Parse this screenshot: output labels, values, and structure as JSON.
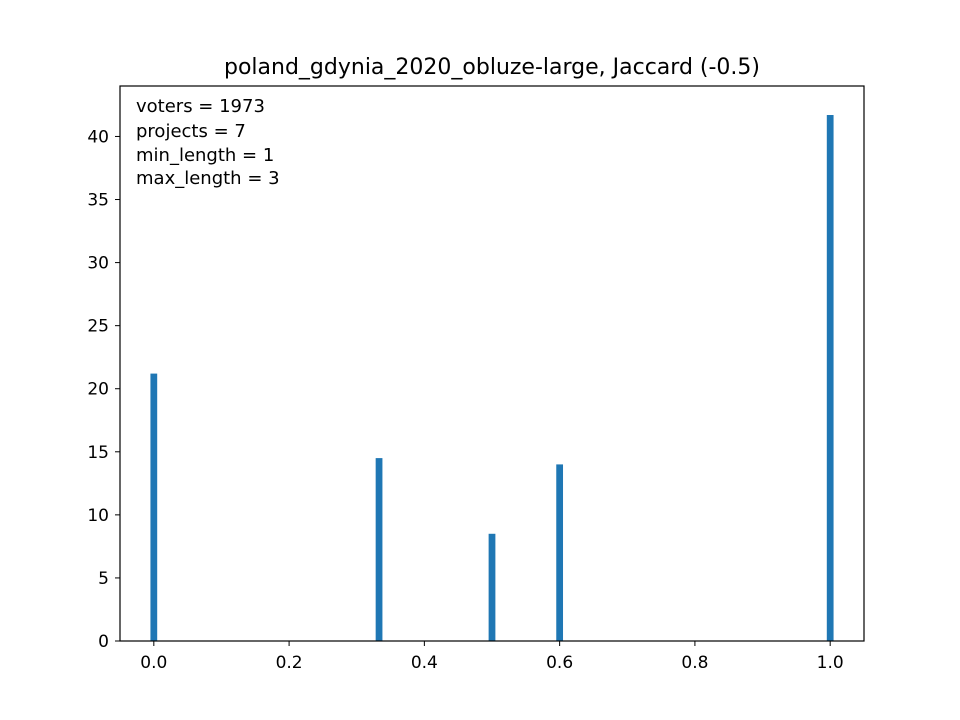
{
  "chart_data": {
    "type": "bar",
    "title": "poland_gdynia_2020_obluze-large, Jaccard (-0.5)",
    "xlabel": "",
    "ylabel": "",
    "xlim": [
      -0.05,
      1.05
    ],
    "ylim": [
      0,
      44
    ],
    "xticks": [
      0.0,
      0.2,
      0.4,
      0.6,
      0.8,
      1.0
    ],
    "xtick_labels": [
      "0.0",
      "0.2",
      "0.4",
      "0.6",
      "0.8",
      "1.0"
    ],
    "yticks": [
      0,
      5,
      10,
      15,
      20,
      25,
      30,
      35,
      40
    ],
    "ytick_labels": [
      "0",
      "5",
      "10",
      "15",
      "20",
      "25",
      "30",
      "35",
      "40"
    ],
    "bar_width": 0.01,
    "bar_color": "#1f77b4",
    "grid": false,
    "bars": [
      {
        "x": 0.0,
        "value": 21.2
      },
      {
        "x": 0.333,
        "value": 14.5
      },
      {
        "x": 0.5,
        "value": 8.5
      },
      {
        "x": 0.6,
        "value": 14.0
      },
      {
        "x": 1.0,
        "value": 41.7
      }
    ],
    "annotations": [
      "voters = 1973",
      "projects = 7",
      "min_length = 1",
      "max_length = 3"
    ]
  }
}
